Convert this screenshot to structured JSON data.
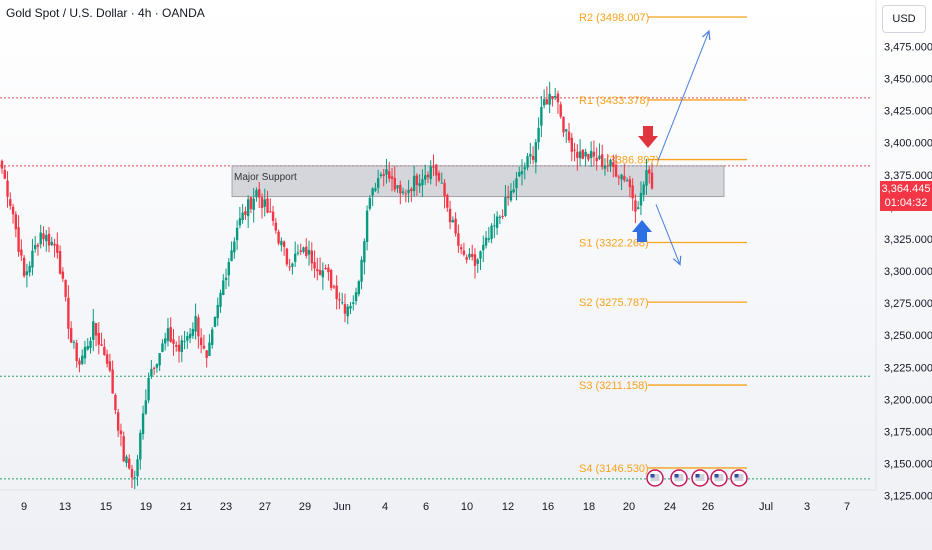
{
  "header": {
    "title": "Gold Spot / U.S. Dollar · 4h · OANDA",
    "currency": "USD"
  },
  "price_tag": {
    "price": "3,364.445",
    "countdown": "01:04:32"
  },
  "zone": {
    "label": "Major Support",
    "low": 3358,
    "high": 3382
  },
  "colors": {
    "up": "#089981",
    "down": "#f23645",
    "level": "#f7a21b",
    "arrow": "#4a7fe0",
    "red_dotted": "#e0474c",
    "green_dotted": "#26a269"
  },
  "chart_data": {
    "type": "candlestick",
    "title": "Gold Spot / U.S. Dollar · 4h · OANDA",
    "ylim": [
      3110,
      3510
    ],
    "y_ticks": [
      "3,475.000",
      "3,450.000",
      "3,425.000",
      "3,400.000",
      "3,375.000",
      "3,350.000",
      "3,325.000",
      "3,300.000",
      "3,275.000",
      "3,250.000",
      "3,225.000",
      "3,200.000",
      "3,175.000",
      "3,150.000",
      "3,125.000"
    ],
    "x_ticks": [
      "9",
      "13",
      "15",
      "19",
      "21",
      "23",
      "27",
      "29",
      "Jun",
      "4",
      "6",
      "10",
      "12",
      "16",
      "18",
      "20",
      "24",
      "26",
      "Jul",
      "3",
      "7"
    ],
    "levels": [
      {
        "label": "R2 (3498.007)",
        "value": 3498.007
      },
      {
        "label": "R1 (3433.378)",
        "value": 3433.378
      },
      {
        "label": "(3386.897)",
        "value": 3386.897
      },
      {
        "label": "S1 (3322.268)",
        "value": 3322.268
      },
      {
        "label": "S2 (3275.787)",
        "value": 3275.787
      },
      {
        "label": "S3 (3211.158)",
        "value": 3211.158
      },
      {
        "label": "S4 (3146.530)",
        "value": 3146.53
      }
    ],
    "horizontal_lines": [
      {
        "style": "red-dotted",
        "value": 3435
      },
      {
        "style": "red-dotted",
        "value": 3382
      },
      {
        "style": "green-dotted",
        "value": 3218
      },
      {
        "style": "green-dotted",
        "value": 3138
      }
    ],
    "waypoints": [
      [
        0,
        3380
      ],
      [
        4,
        3345
      ],
      [
        8,
        3295
      ],
      [
        14,
        3330
      ],
      [
        20,
        3318
      ],
      [
        25,
        3245
      ],
      [
        28,
        3228
      ],
      [
        33,
        3255
      ],
      [
        38,
        3232
      ],
      [
        44,
        3155
      ],
      [
        48,
        3138
      ],
      [
        53,
        3220
      ],
      [
        60,
        3250
      ],
      [
        64,
        3238
      ],
      [
        70,
        3262
      ],
      [
        74,
        3228
      ],
      [
        80,
        3292
      ],
      [
        85,
        3335
      ],
      [
        92,
        3362
      ],
      [
        98,
        3338
      ],
      [
        103,
        3308
      ],
      [
        110,
        3315
      ],
      [
        118,
        3295
      ],
      [
        124,
        3272
      ],
      [
        128,
        3280
      ],
      [
        133,
        3362
      ],
      [
        138,
        3380
      ],
      [
        144,
        3358
      ],
      [
        150,
        3372
      ],
      [
        156,
        3382
      ],
      [
        160,
        3358
      ],
      [
        166,
        3312
      ],
      [
        171,
        3305
      ],
      [
        176,
        3325
      ],
      [
        182,
        3352
      ],
      [
        188,
        3378
      ],
      [
        192,
        3392
      ],
      [
        196,
        3432
      ],
      [
        200,
        3440
      ],
      [
        204,
        3405
      ],
      [
        208,
        3392
      ],
      [
        214,
        3388
      ],
      [
        220,
        3382
      ],
      [
        226,
        3372
      ],
      [
        229,
        3352
      ],
      [
        231,
        3358
      ],
      [
        233,
        3378
      ],
      [
        235,
        3364.4
      ]
    ],
    "annotations": [
      "Major Support"
    ],
    "projection_arrows": [
      {
        "direction": "up",
        "from": 3386,
        "to": 3487
      },
      {
        "direction": "down",
        "from": 3352,
        "to": 3305
      }
    ]
  }
}
